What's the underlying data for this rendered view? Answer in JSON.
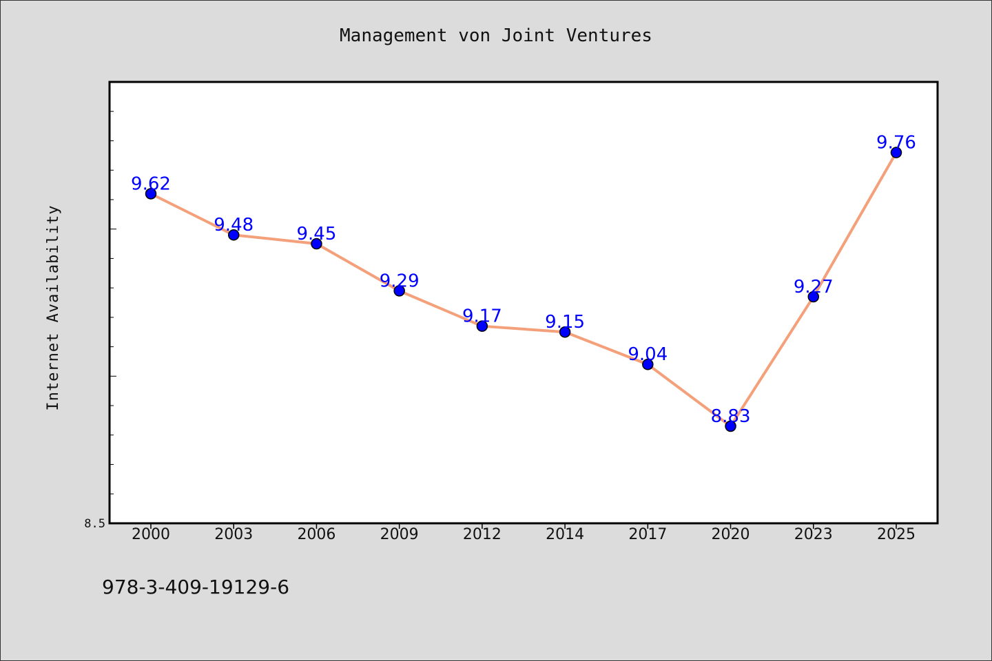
{
  "chart_data": {
    "type": "line",
    "title": "Management von Joint Ventures",
    "xlabel": "",
    "ylabel": "Internet Availability",
    "categories": [
      "2000",
      "2003",
      "2006",
      "2009",
      "2012",
      "2014",
      "2017",
      "2020",
      "2023",
      "2025"
    ],
    "series": [
      {
        "values": [
          9.62,
          9.48,
          9.45,
          9.29,
          9.17,
          9.15,
          9.04,
          8.83,
          9.27,
          9.76
        ],
        "data_labels": [
          "9.62",
          "9.48",
          "9.45",
          "9.29",
          "9.17",
          "9.15",
          "9.04",
          "8.83",
          "9.27",
          "9.76"
        ]
      }
    ],
    "ylim": [
      8.5,
      10.0
    ],
    "y_tick_labels": [
      {
        "value": 8.5,
        "label": "8.5"
      }
    ],
    "grid": false,
    "colors": {
      "line": "#f4a07a",
      "marker": "#0000ff",
      "data_label": "#0000ff",
      "background": "#dcdcdc",
      "plot_background": "#ffffff"
    }
  },
  "footer": {
    "text": "978-3-409-19129-6"
  }
}
